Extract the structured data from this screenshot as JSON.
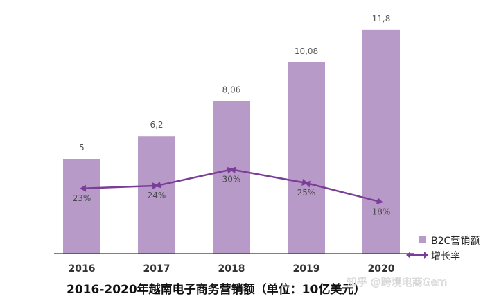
{
  "chart_data": {
    "type": "bar",
    "title": "2016-2020年越南电子商务营销额（单位：10亿美元）",
    "categories": [
      "2016",
      "2017",
      "2018",
      "2019",
      "2020"
    ],
    "series": [
      {
        "name": "B2C营销额",
        "type": "bar",
        "values": [
          5,
          6.2,
          8.06,
          10.08,
          11.8
        ],
        "labels": [
          "5",
          "6,2",
          "8,06",
          "10,08",
          "11,8"
        ]
      },
      {
        "name": "增长率",
        "type": "line",
        "values": [
          23,
          24,
          30,
          25,
          18
        ],
        "labels": [
          "23%",
          "24%",
          "30%",
          "25%",
          "18%"
        ]
      }
    ],
    "ylim": [
      0,
      13
    ],
    "rate_ylim": [
      0,
      100
    ],
    "grid": false,
    "legend_position": "bottom-right",
    "colors": {
      "bar": "#b89ac8",
      "line": "#7a3e98",
      "axis": "#333333"
    }
  },
  "watermark": "知乎 @跨境电商Gem"
}
